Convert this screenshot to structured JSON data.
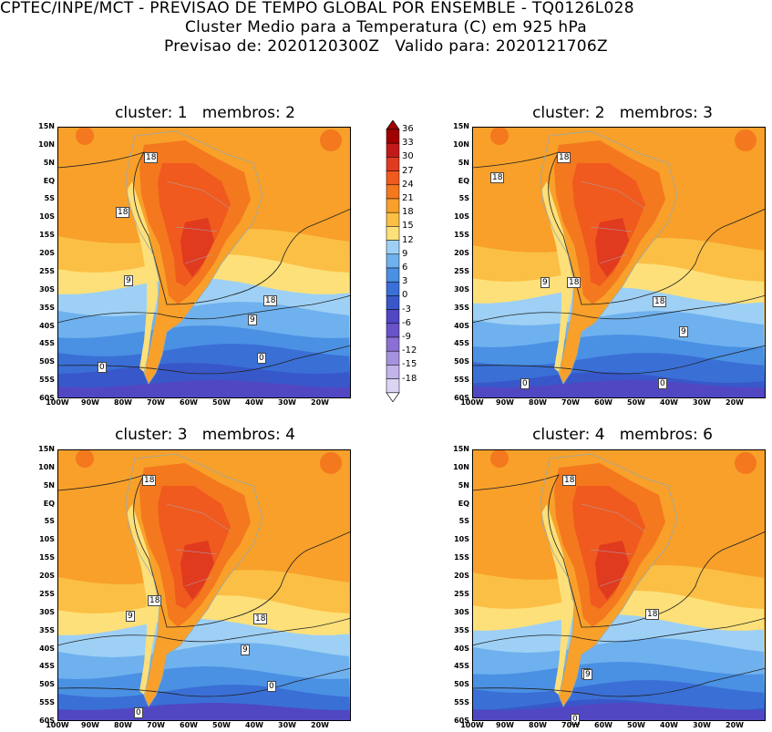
{
  "header": {
    "line1": "CPTEC/INPE/MCT - PREVISAO DE TEMPO GLOBAL POR ENSEMBLE - TQ0126L028",
    "line2": "Cluster Medio para a Temperatura (C) em 925 hPa",
    "line3": "Previsao de: 2020120300Z   Valido para: 2020121706Z"
  },
  "lat_labels": [
    "15N",
    "10N",
    "5N",
    "EQ",
    "5S",
    "10S",
    "15S",
    "20S",
    "25S",
    "30S",
    "35S",
    "40S",
    "45S",
    "50S",
    "55S",
    "60S"
  ],
  "lon_labels": [
    "100W",
    "90W",
    "80W",
    "70W",
    "60W",
    "50W",
    "40W",
    "30W",
    "20W"
  ],
  "colorbar": {
    "labels": [
      "36",
      "33",
      "30",
      "27",
      "24",
      "21",
      "18",
      "15",
      "12",
      "9",
      "6",
      "3",
      "0",
      "-3",
      "-6",
      "-9",
      "-12",
      "-15",
      "-18"
    ],
    "colors": [
      "#a00000",
      "#c21a1a",
      "#e03a1f",
      "#f05a1e",
      "#f4781e",
      "#f8a02a",
      "#fbbf45",
      "#fde079",
      "#9ed0f5",
      "#6fb1ee",
      "#4a90e3",
      "#3a6fd6",
      "#3858c9",
      "#5147c3",
      "#6a52c8",
      "#8a70d5",
      "#a592df",
      "#c2b3ea",
      "#ddd3f3"
    ]
  },
  "panels": [
    {
      "title": "cluster: 1   membros: 2",
      "labels": [
        "18",
        "18",
        "9",
        "18",
        "9",
        "0",
        "0"
      ]
    },
    {
      "title": "cluster: 2   membros: 3",
      "labels": [
        "18",
        "18",
        "9",
        "18",
        "18",
        "9",
        "0",
        "0"
      ]
    },
    {
      "title": "cluster: 3   membros: 4",
      "labels": [
        "18",
        "18",
        "9",
        "18",
        "9",
        "0",
        "0"
      ]
    },
    {
      "title": "cluster: 4   membros: 6",
      "labels": [
        "18",
        "18",
        "9",
        "9",
        "0"
      ]
    }
  ]
}
